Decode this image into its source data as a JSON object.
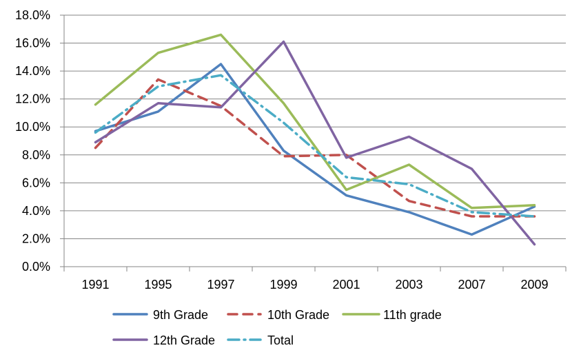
{
  "chart_data": {
    "type": "line",
    "title": "",
    "xlabel": "",
    "ylabel": "",
    "categories": [
      "1991",
      "1995",
      "1997",
      "1999",
      "2001",
      "2003",
      "2007",
      "2009"
    ],
    "ylim": [
      0,
      18
    ],
    "yticks": [
      0,
      2,
      4,
      6,
      8,
      10,
      12,
      14,
      16,
      18
    ],
    "ytick_labels": [
      "0.0%",
      "2.0%",
      "4.0%",
      "6.0%",
      "8.0%",
      "10.0%",
      "12.0%",
      "14.0%",
      "16.0%",
      "18.0%"
    ],
    "grid": true,
    "legend_position": "bottom",
    "series": [
      {
        "name": "9th Grade",
        "color": "#4F81BD",
        "dash": "solid",
        "values": [
          9.7,
          11.1,
          14.5,
          8.3,
          5.1,
          3.9,
          2.3,
          4.3
        ]
      },
      {
        "name": "10th Grade",
        "color": "#C0504D",
        "dash": "dash",
        "values": [
          8.5,
          13.4,
          11.5,
          7.9,
          8.0,
          4.7,
          3.6,
          3.6
        ]
      },
      {
        "name": "11th grade",
        "color": "#9BBB59",
        "dash": "solid",
        "values": [
          11.6,
          15.3,
          16.6,
          11.7,
          5.5,
          7.3,
          4.2,
          4.4
        ]
      },
      {
        "name": "12th Grade",
        "color": "#8064A2",
        "dash": "solid",
        "values": [
          8.9,
          11.7,
          11.4,
          16.1,
          7.8,
          9.3,
          7.0,
          1.6
        ]
      },
      {
        "name": "Total",
        "color": "#4BACC6",
        "dash": "dashdot",
        "values": [
          9.6,
          12.9,
          13.7,
          10.3,
          6.4,
          5.9,
          3.9,
          3.6
        ]
      }
    ]
  }
}
